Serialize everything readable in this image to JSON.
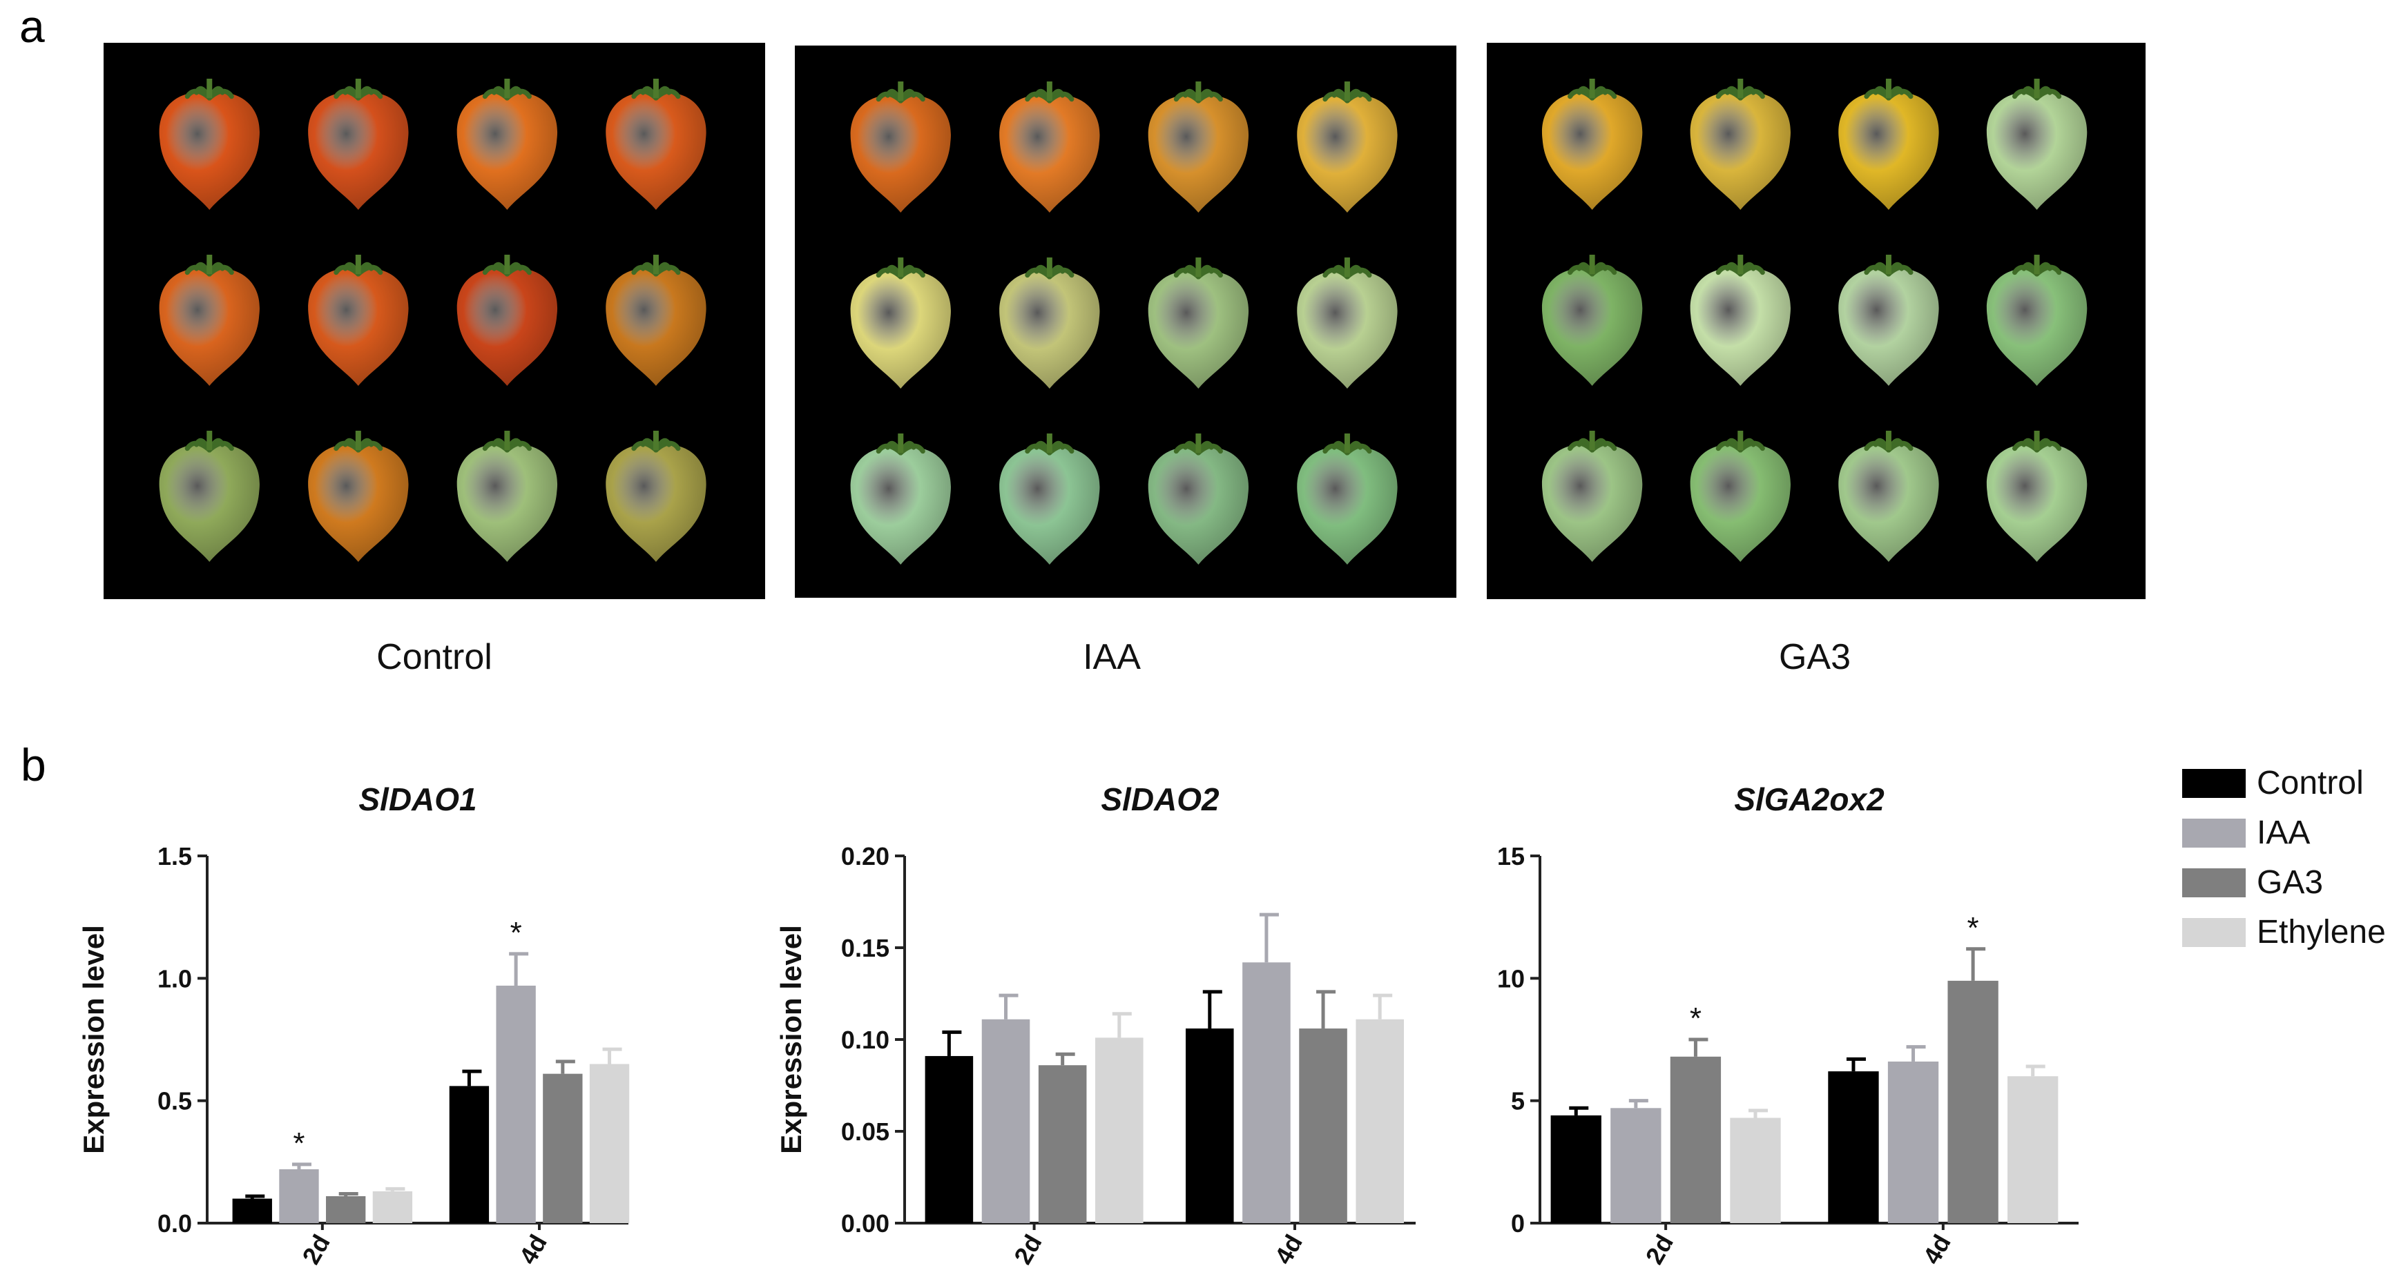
{
  "panel_a": {
    "letter": "a",
    "groups": [
      {
        "label": "Control",
        "fruits": [
          "#d9541a",
          "#d4501c",
          "#e0701f",
          "#d85a1c",
          "#d9641e",
          "#d6591c",
          "#c9451a",
          "#c8781e",
          "#8fa95a",
          "#cf7a1f",
          "#9ebf7a",
          "#a9a24a"
        ]
      },
      {
        "label": "IAA",
        "fruits": [
          "#d96a1e",
          "#e27a26",
          "#d6902c",
          "#e0b03a",
          "#dcd67a",
          "#c2c478",
          "#9ec080",
          "#b8d092",
          "#9ccd9c",
          "#8cc494",
          "#84b884",
          "#80bd7f"
        ]
      },
      {
        "label": "GA3",
        "fruits": [
          "#e0a82a",
          "#d9b53c",
          "#e0b727",
          "#b2d498",
          "#7eb365",
          "#c4dfa8",
          "#b2d2a0",
          "#88c07a",
          "#9cc486",
          "#86bd72",
          "#a0c88c",
          "#a5cf92"
        ]
      }
    ]
  },
  "panel_b": {
    "letter": "b"
  },
  "legend": [
    {
      "label": "Control",
      "color": "#000000"
    },
    {
      "label": "IAA",
      "color": "#a8a8b0"
    },
    {
      "label": "GA3",
      "color": "#7f7f7f"
    },
    {
      "label": "Ethylene",
      "color": "#d6d6d6"
    }
  ],
  "chart_data": [
    {
      "type": "bar",
      "title": "SlDAO1",
      "ylabel": "Expression level",
      "categories": [
        "2d",
        "4d"
      ],
      "ylim": [
        0,
        1.5
      ],
      "ytick_labels": [
        "0.0",
        "0.5",
        "1.0",
        "1.5"
      ],
      "series": [
        {
          "name": "Control",
          "values": [
            0.1,
            0.56
          ],
          "errors": [
            0.01,
            0.06
          ],
          "sig": [
            "",
            ""
          ]
        },
        {
          "name": "IAA",
          "values": [
            0.22,
            0.97
          ],
          "errors": [
            0.02,
            0.13
          ],
          "sig": [
            "*",
            "*"
          ]
        },
        {
          "name": "GA3",
          "values": [
            0.11,
            0.61
          ],
          "errors": [
            0.01,
            0.05
          ],
          "sig": [
            "",
            ""
          ]
        },
        {
          "name": "Ethylene",
          "values": [
            0.13,
            0.65
          ],
          "errors": [
            0.01,
            0.06
          ],
          "sig": [
            "",
            ""
          ]
        }
      ]
    },
    {
      "type": "bar",
      "title": "SlDAO2",
      "ylabel": "Expression level",
      "categories": [
        "2d",
        "4d"
      ],
      "ylim": [
        0,
        0.2
      ],
      "ytick_labels": [
        "0.00",
        "0.05",
        "0.10",
        "0.15",
        "0.20"
      ],
      "series": [
        {
          "name": "Control",
          "values": [
            0.091,
            0.106
          ],
          "errors": [
            0.013,
            0.02
          ],
          "sig": [
            "",
            ""
          ]
        },
        {
          "name": "IAA",
          "values": [
            0.111,
            0.142
          ],
          "errors": [
            0.013,
            0.026
          ],
          "sig": [
            "",
            ""
          ]
        },
        {
          "name": "GA3",
          "values": [
            0.086,
            0.106
          ],
          "errors": [
            0.006,
            0.02
          ],
          "sig": [
            "",
            ""
          ]
        },
        {
          "name": "Ethylene",
          "values": [
            0.101,
            0.111
          ],
          "errors": [
            0.013,
            0.013
          ],
          "sig": [
            "",
            ""
          ]
        }
      ]
    },
    {
      "type": "bar",
      "title": "SlGA2ox2",
      "ylabel": "Expression level",
      "categories": [
        "2d",
        "4d"
      ],
      "ylim": [
        0,
        15
      ],
      "ytick_labels": [
        "0",
        "5",
        "10",
        "15"
      ],
      "series": [
        {
          "name": "Control",
          "values": [
            4.4,
            6.2
          ],
          "errors": [
            0.3,
            0.5
          ],
          "sig": [
            "",
            ""
          ]
        },
        {
          "name": "IAA",
          "values": [
            4.7,
            6.6
          ],
          "errors": [
            0.3,
            0.6
          ],
          "sig": [
            "",
            ""
          ]
        },
        {
          "name": "GA3",
          "values": [
            6.8,
            9.9
          ],
          "errors": [
            0.7,
            1.3
          ],
          "sig": [
            "*",
            "*"
          ]
        },
        {
          "name": "Ethylene",
          "values": [
            4.3,
            6.0
          ],
          "errors": [
            0.3,
            0.4
          ],
          "sig": [
            "",
            ""
          ]
        }
      ]
    }
  ]
}
